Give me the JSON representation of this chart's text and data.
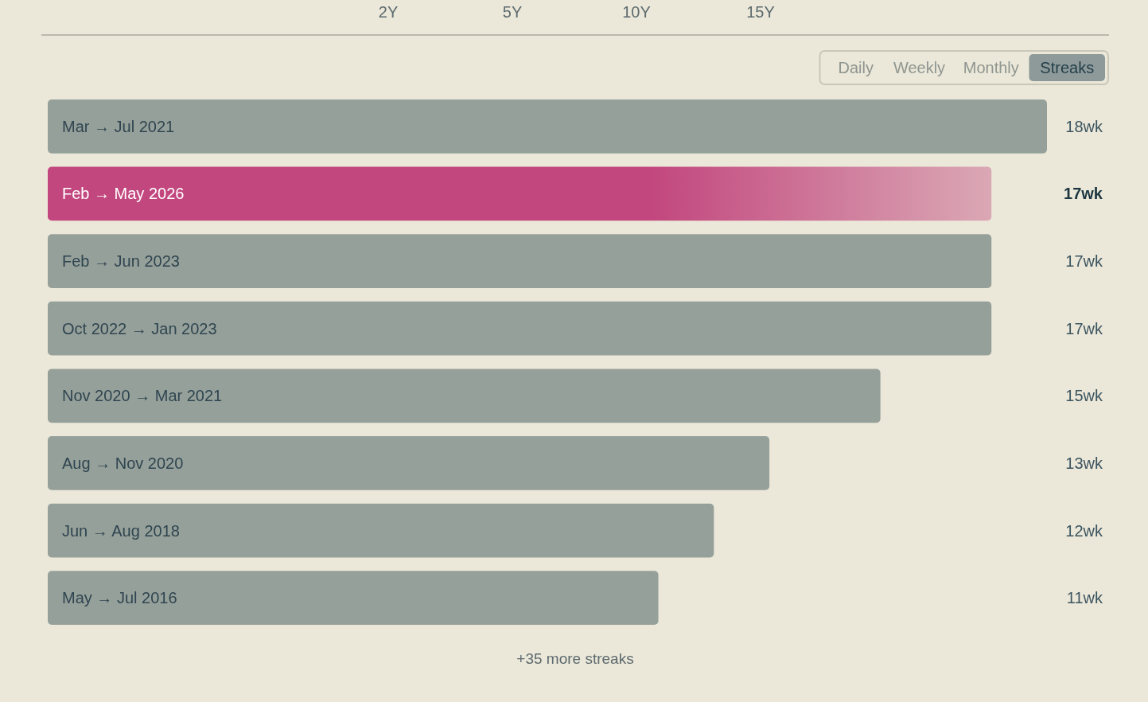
{
  "chart_data": {
    "type": "bar",
    "orientation": "horizontal",
    "categories": [
      "Mar → Jul 2021",
      "Feb → May 2026",
      "Feb → Jun 2023",
      "Oct 2022 → Jan 2023",
      "Nov 2020 → Mar 2021",
      "Aug → Nov 2020",
      "Jun → Aug 2018",
      "May → Jul 2016"
    ],
    "values": [
      18,
      17,
      17,
      17,
      15,
      13,
      12,
      11
    ],
    "value_labels": [
      "18wk",
      "17wk",
      "17wk",
      "17wk",
      "15wk",
      "13wk",
      "12wk",
      "11wk"
    ],
    "colors": [
      "#96a09a",
      "#c2477e",
      "#96a09a",
      "#96a09a",
      "#96a09a",
      "#96a09a",
      "#96a09a",
      "#96a09a"
    ],
    "annotations": [
      "2Y",
      "5Y",
      "10Y",
      "15Y",
      "Daily",
      "Weekly",
      "Monthly",
      "Streaks",
      "+35 more streaks"
    ]
  }
}
